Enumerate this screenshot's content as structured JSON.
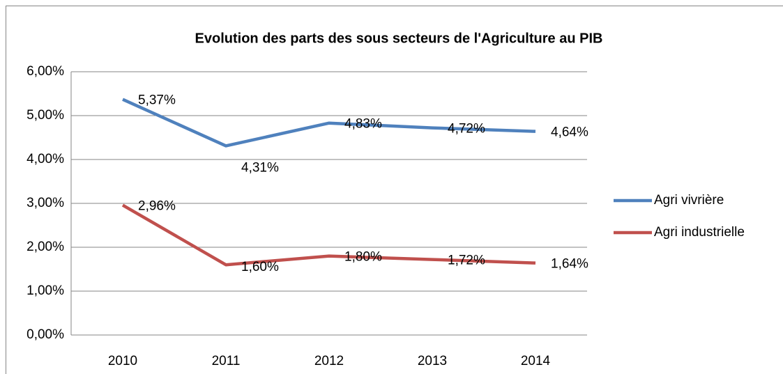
{
  "chart_data": {
    "type": "line",
    "title": "Evolution des parts des sous secteurs de l'Agriculture au PIB",
    "categories": [
      "2010",
      "2011",
      "2012",
      "2013",
      "2014"
    ],
    "series": [
      {
        "name": "Agri vivrière",
        "color": "#4f81bd",
        "values": [
          5.37,
          4.31,
          4.83,
          4.72,
          4.64
        ],
        "value_labels": [
          "5,37%",
          "4,31%",
          "4,83%",
          "4,72%",
          "4,64%"
        ]
      },
      {
        "name": "Agri industrielle",
        "color": "#c0504d",
        "values": [
          2.96,
          1.6,
          1.8,
          1.72,
          1.64
        ],
        "value_labels": [
          "2,96%",
          "1,60%",
          "1,80%",
          "1,72%",
          "1,64%"
        ]
      }
    ],
    "ylim": [
      0,
      6
    ],
    "yticks": [
      {
        "value": 0,
        "label": "0,00%"
      },
      {
        "value": 1,
        "label": "1,00%"
      },
      {
        "value": 2,
        "label": "2,00%"
      },
      {
        "value": 3,
        "label": "3,00%"
      },
      {
        "value": 4,
        "label": "4,00%"
      },
      {
        "value": 5,
        "label": "5,00%"
      },
      {
        "value": 6,
        "label": "6,00%"
      }
    ],
    "grid": true,
    "legend": "right"
  }
}
